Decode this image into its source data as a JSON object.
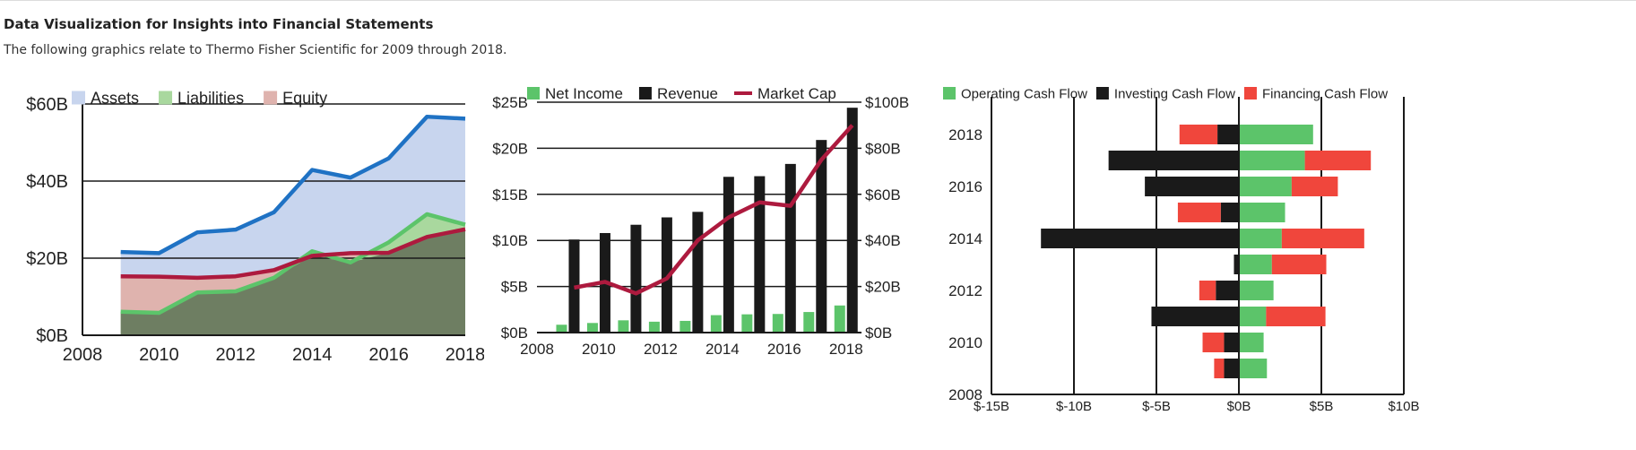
{
  "page": {
    "title": "Data Visualization for Insights into Financial Statements",
    "subtitle": "The following graphics relate to Thermo Fisher Scientific for 2009 through 2018."
  },
  "colors": {
    "assets_fill": "#c8d5ee",
    "assets_line": "#1f72c4",
    "liabilities_fill": "#a9d89e",
    "liabilities_line": "#5cc46a",
    "equity_fill": "#dfb3ae",
    "equity_line": "#ad1a3e",
    "overlap_fill": "#6e7e62",
    "net_income": "#5cc46a",
    "revenue": "#1a1a1a",
    "market_cap": "#ad1a3e",
    "operating": "#5cc46a",
    "investing": "#1a1a1a",
    "financing": "#f0463c",
    "axis": "#1a1a1a"
  },
  "chart_data": [
    {
      "type": "area",
      "title": "",
      "legend": [
        "Assets",
        "Liabilities",
        "Equity"
      ],
      "x": [
        2009,
        2010,
        2011,
        2012,
        2013,
        2014,
        2015,
        2016,
        2017,
        2018
      ],
      "series": [
        {
          "name": "Assets",
          "values": [
            21.6,
            21.3,
            26.7,
            27.4,
            31.9,
            42.9,
            40.9,
            45.9,
            56.7,
            56.2
          ]
        },
        {
          "name": "Liabilities",
          "values": [
            6.1,
            5.8,
            11.1,
            11.4,
            14.9,
            21.8,
            18.9,
            24.1,
            31.4,
            28.7
          ]
        },
        {
          "name": "Equity",
          "values": [
            15.3,
            15.2,
            14.9,
            15.3,
            16.9,
            20.6,
            21.3,
            21.4,
            25.5,
            27.5
          ]
        }
      ],
      "xlim": [
        2008,
        2018
      ],
      "ylim": [
        0,
        60
      ],
      "xticks": [
        "2008",
        "2010",
        "2012",
        "2014",
        "2016",
        "2018"
      ],
      "yticks": [
        "$0B",
        "$20B",
        "$40B",
        "$60B"
      ],
      "ytick_values": [
        0,
        20,
        40,
        60
      ]
    },
    {
      "type": "bar",
      "title": "",
      "legend": [
        "Net Income",
        "Revenue",
        "Market Cap"
      ],
      "x": [
        2009,
        2010,
        2011,
        2012,
        2013,
        2014,
        2015,
        2016,
        2017,
        2018
      ],
      "series": [
        {
          "name": "Net Income",
          "axis": "left",
          "values": [
            0.85,
            1.04,
            1.33,
            1.18,
            1.27,
            1.89,
            1.98,
            2.02,
            2.23,
            2.94
          ]
        },
        {
          "name": "Revenue",
          "axis": "left",
          "values": [
            10.1,
            10.8,
            11.7,
            12.5,
            13.1,
            16.9,
            16.97,
            18.3,
            20.9,
            24.4
          ]
        },
        {
          "name": "Market Cap",
          "axis": "right",
          "type": "line",
          "values": [
            19.5,
            22.0,
            17.0,
            23.5,
            40.0,
            50.0,
            56.5,
            55.0,
            75.0,
            90.0
          ]
        }
      ],
      "xlim": [
        2008,
        2018.5
      ],
      "ylim_left": [
        0,
        25
      ],
      "ylim_right": [
        0,
        100
      ],
      "xticks": [
        "2008",
        "2010",
        "2012",
        "2014",
        "2016",
        "2018"
      ],
      "yticks_left": [
        "$0B",
        "$5B",
        "$10B",
        "$15B",
        "$20B",
        "$25B"
      ],
      "yticks_left_values": [
        0,
        5,
        10,
        15,
        20,
        25
      ],
      "yticks_right": [
        "$0B",
        "$20B",
        "$40B",
        "$60B",
        "$80B",
        "$100B"
      ],
      "yticks_right_values": [
        0,
        20,
        40,
        60,
        80,
        100
      ]
    },
    {
      "type": "bar",
      "orientation": "horizontal",
      "title": "",
      "legend": [
        "Operating Cash Flow",
        "Investing Cash Flow",
        "Financing Cash Flow"
      ],
      "y": [
        2009,
        2010,
        2011,
        2012,
        2013,
        2014,
        2015,
        2016,
        2017,
        2018
      ],
      "series": [
        {
          "name": "Operating Cash Flow",
          "values": [
            1.7,
            1.5,
            1.65,
            2.1,
            2.0,
            2.6,
            2.8,
            3.2,
            4.0,
            4.5
          ]
        },
        {
          "name": "Investing Cash Flow",
          "values": [
            -0.9,
            -0.9,
            -5.3,
            -1.4,
            -0.3,
            -12.0,
            -1.1,
            -5.7,
            -7.9,
            -1.3
          ]
        },
        {
          "name": "Financing Cash Flow",
          "values": [
            -0.6,
            -1.3,
            3.6,
            -1.0,
            3.3,
            5.0,
            -2.6,
            2.8,
            4.0,
            -2.3
          ]
        }
      ],
      "xlim": [
        -15,
        10
      ],
      "xticks": [
        "$-15B",
        "$-10B",
        "$-5B",
        "$0B",
        "$5B",
        "$10B"
      ],
      "xtick_values": [
        -15,
        -10,
        -5,
        0,
        5,
        10
      ],
      "yticks": [
        "2008",
        "2010",
        "2012",
        "2014",
        "2016",
        "2018"
      ],
      "ytick_values": [
        2008,
        2010,
        2012,
        2014,
        2016,
        2018
      ]
    }
  ]
}
